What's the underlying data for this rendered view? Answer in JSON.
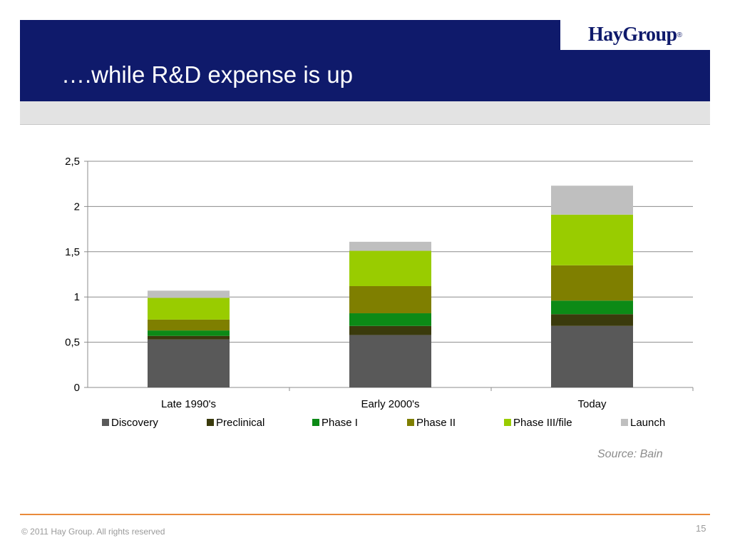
{
  "header": {
    "title": "….while R&D expense is up",
    "logo_text": "HayGroup",
    "logo_mark": "®"
  },
  "source": "Source: Bain",
  "footer": {
    "copyright": "© 2011 Hay Group. All rights reserved",
    "page_number": "15"
  },
  "colors": {
    "header_bg": "#0f1a6b",
    "footer_line": "#e98a3a",
    "discovery": "#595959",
    "preclinical": "#3a3a0c",
    "phase1": "#0c8a16",
    "phase2": "#7f7f00",
    "phase3": "#99cc00",
    "launch": "#bfbfbf"
  },
  "chart_data": {
    "type": "bar",
    "stacked": true,
    "categories": [
      "Late  1990's",
      "Early 2000's",
      "Today"
    ],
    "series": [
      {
        "name": "Discovery",
        "values": [
          0.53,
          0.58,
          0.68
        ]
      },
      {
        "name": "Preclinical",
        "values": [
          0.04,
          0.1,
          0.13
        ]
      },
      {
        "name": "Phase I",
        "values": [
          0.06,
          0.14,
          0.15
        ]
      },
      {
        "name": "Phase II",
        "values": [
          0.12,
          0.3,
          0.39
        ]
      },
      {
        "name": "Phase III/file",
        "values": [
          0.24,
          0.39,
          0.56
        ]
      },
      {
        "name": "Launch",
        "values": [
          0.08,
          0.1,
          0.32
        ]
      }
    ],
    "ylim": [
      0,
      2.5
    ],
    "yticks": [
      "0",
      "0,5",
      "1",
      "1,5",
      "2",
      "2,5"
    ],
    "ytick_values": [
      0,
      0.5,
      1,
      1.5,
      2,
      2.5
    ],
    "grid": true,
    "legend_position": "bottom"
  }
}
